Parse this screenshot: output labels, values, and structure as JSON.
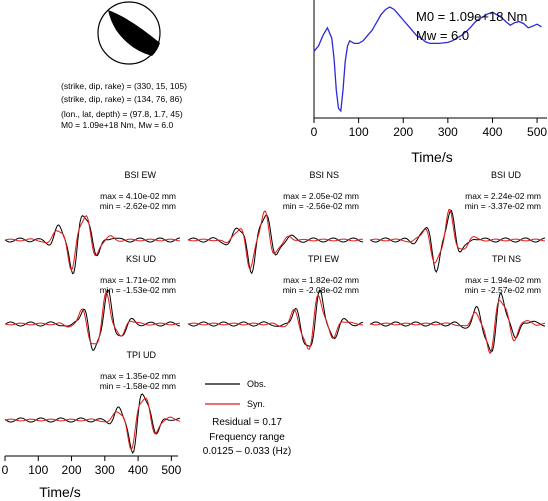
{
  "source_params": {
    "plane1": "(strike, dip, rake) = (330, 15, 105)",
    "plane2": "(strike, dip, rake) = (134, 76, 86)",
    "location": "(lon., lat, depth) = (97.8, 1.7, 45)",
    "moment": "M0 = 1.09e+18 Nm, Mw = 6.0"
  },
  "stf": {
    "m0_label": "M0 = 1.09e+18 Nm",
    "mw_label": "Mw = 6.0",
    "xlabel": "Time/s",
    "color": "#2a2ad8"
  },
  "bottom_axis": {
    "xlabel": "Time/s"
  },
  "legend": {
    "obs_label": "Obs.",
    "syn_label": "Syn.",
    "obs_color": "#000000",
    "syn_color": "#e01818"
  },
  "summary": {
    "residual": "Residual = 0.17",
    "freq_title": "Frequency range",
    "freq_values": "0.0125 – 0.033 (Hz)"
  },
  "chart_data": [
    {
      "type": "line",
      "id": "source-time-function",
      "xlabel": "Time/s",
      "xlim": [
        0,
        520
      ],
      "xticks": [
        0,
        100,
        200,
        300,
        400,
        500
      ],
      "series": [
        {
          "x": [
            0,
            10,
            20,
            30,
            40,
            45,
            50,
            55,
            60,
            65,
            70,
            75,
            80,
            90,
            100,
            110,
            120,
            130,
            140,
            150,
            160,
            170,
            180,
            190,
            200,
            210,
            220,
            230,
            240,
            250,
            260,
            270,
            280,
            290,
            300,
            310,
            320,
            330,
            340,
            350,
            360,
            370,
            380,
            390,
            400,
            410,
            420,
            430,
            440,
            450,
            460,
            470,
            480,
            490,
            500,
            510
          ],
          "y": [
            0.15,
            0.25,
            0.45,
            0.6,
            0.4,
            0.0,
            -0.6,
            -0.95,
            -1.0,
            -0.6,
            -0.05,
            0.25,
            0.35,
            0.3,
            0.3,
            0.35,
            0.45,
            0.55,
            0.7,
            0.85,
            0.95,
            1.0,
            0.95,
            0.85,
            0.75,
            0.65,
            0.55,
            0.45,
            0.4,
            0.33,
            0.3,
            0.3,
            0.3,
            0.31,
            0.32,
            0.35,
            0.4,
            0.45,
            0.52,
            0.6,
            0.7,
            0.77,
            0.82,
            0.87,
            0.9,
            0.85,
            0.8,
            0.72,
            0.65,
            0.7,
            0.72,
            0.68,
            0.6,
            0.63,
            0.67,
            0.62
          ]
        }
      ]
    },
    {
      "type": "line",
      "id": "waveform-fits",
      "xlabel": "Time/s",
      "xlim": [
        0,
        520
      ],
      "xticks": [
        0,
        100,
        200,
        300,
        400,
        500
      ],
      "series_names": [
        "Obs.",
        "Syn."
      ],
      "panels": [
        {
          "station": "BSI EW",
          "max": "max = 4.10e-02 mm",
          "min": "min = -2.62e-02 mm",
          "max_value": 0.041,
          "min_value": -0.0262,
          "center": 0.42,
          "width": 0.22,
          "freq": 6.5
        },
        {
          "station": "BSI NS",
          "max": "max = 2.05e-02 mm",
          "min": "min = -2.56e-02 mm",
          "max_value": 0.0205,
          "min_value": -0.0256,
          "center": 0.4,
          "width": 0.22,
          "freq": 6.5
        },
        {
          "station": "BSI UD",
          "max": "max = 2.24e-02 mm",
          "min": "min = -3.37e-02 mm",
          "max_value": 0.0224,
          "min_value": -0.0337,
          "center": 0.42,
          "width": 0.2,
          "freq": 6.5
        },
        {
          "station": "KSI UD",
          "max": "max = 1.71e-02 mm",
          "min": "min = -1.53e-02 mm",
          "max_value": 0.0171,
          "min_value": -0.0153,
          "center": 0.55,
          "width": 0.22,
          "freq": 6.5
        },
        {
          "station": "TPI EW",
          "max": "max = 1.82e-02 mm",
          "min": "min = -2.08e-02 mm",
          "max_value": 0.0182,
          "min_value": -0.0208,
          "center": 0.72,
          "width": 0.22,
          "freq": 6.5
        },
        {
          "station": "TPI NS",
          "max": "max = 1.94e-02 mm",
          "min": "min = -2.57e-02 mm",
          "max_value": 0.0194,
          "min_value": -0.0257,
          "center": 0.72,
          "width": 0.22,
          "freq": 6.5
        },
        {
          "station": "TPI UD",
          "max": "max = 1.35e-02 mm",
          "min": "min = -1.58e-02 mm",
          "max_value": 0.0135,
          "min_value": -0.0158,
          "center": 0.76,
          "width": 0.2,
          "freq": 6.5
        }
      ]
    }
  ]
}
